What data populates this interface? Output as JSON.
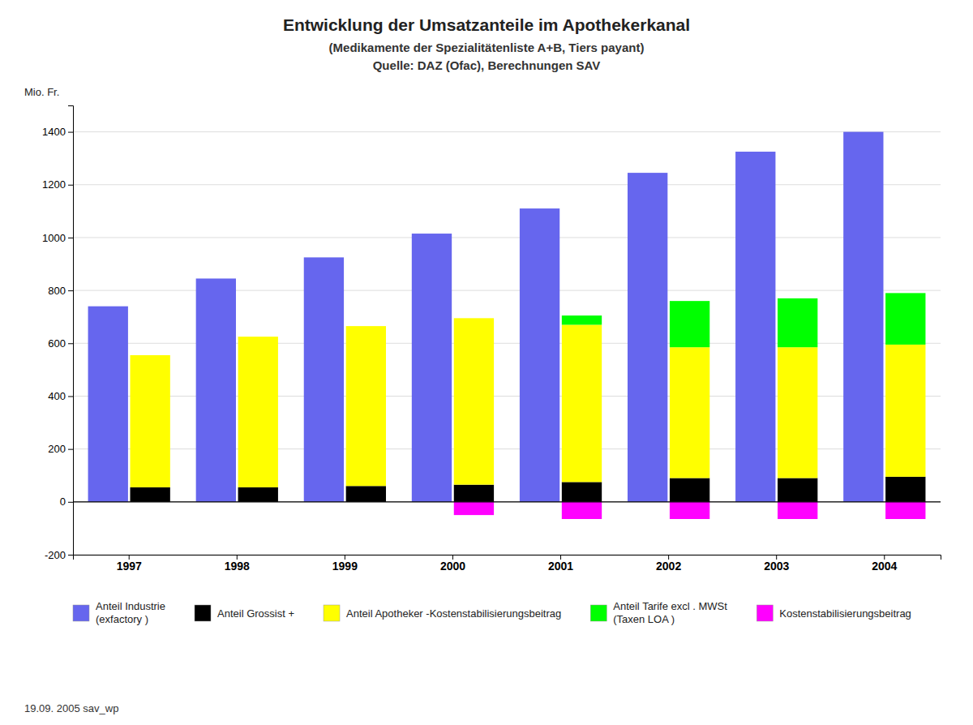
{
  "chart_data": {
    "type": "bar",
    "title": "Entwicklung der Umsatzanteile im Apothekerkanal",
    "subtitle": "(Medikamente der Spezialitätenliste A+B, Tiers payant)",
    "annotations": [
      "Quelle: DAZ (Ofac), Berechnungen SAV",
      "19.09. 2005   sav_wp"
    ],
    "ylabel": "Mio. Fr.",
    "categories": [
      "1997",
      "1998",
      "1999",
      "2000",
      "2001",
      "2002",
      "2003",
      "2004"
    ],
    "series": [
      {
        "name": "Anteil Industrie\n(exfactory )",
        "type": "bar",
        "color": "#6666EE",
        "values": [
          740,
          845,
          925,
          1015,
          1110,
          1245,
          1325,
          1400
        ]
      },
      {
        "name": "Anteil Grossist +",
        "type": "stacked_bar",
        "color": "#000000",
        "values": [
          55,
          55,
          60,
          65,
          75,
          90,
          90,
          95
        ]
      },
      {
        "name": "Anteil Apotheker  -Kostenstabilisierungsbeitrag",
        "type": "stacked_bar",
        "color": "#FFFF00",
        "values": [
          500,
          570,
          605,
          630,
          595,
          495,
          495,
          500
        ]
      },
      {
        "name": "Anteil Tarife excl . MWSt\n(Taxen LOA )",
        "type": "stacked_bar",
        "color": "#00FF00",
        "values": [
          0,
          0,
          0,
          0,
          35,
          175,
          185,
          195
        ]
      },
      {
        "name": "Kostenstabilisierungsbeitrag",
        "type": "stacked_bar",
        "color": "#FF00FF",
        "values": [
          0,
          0,
          0,
          -50,
          -65,
          -65,
          -65,
          -65
        ]
      }
    ],
    "stacked": true,
    "ylim": [
      -200,
      1500
    ],
    "yticks": [
      -200,
      0,
      200,
      400,
      600,
      800,
      1000,
      1200,
      1400
    ],
    "grid": true,
    "legend": "bottom"
  }
}
